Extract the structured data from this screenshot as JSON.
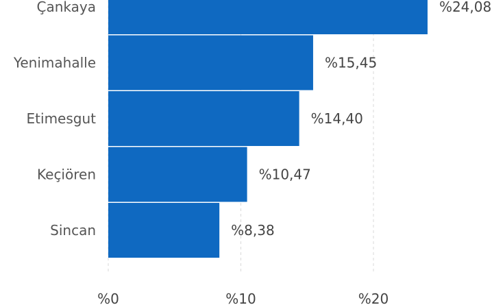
{
  "chart_data": {
    "type": "bar",
    "orientation": "horizontal",
    "categories": [
      "Çankaya",
      "Yenimahalle",
      "Etimesgut",
      "Keçiören",
      "Sincan"
    ],
    "values": [
      24.08,
      15.45,
      14.4,
      10.47,
      8.38
    ],
    "value_labels": [
      "%24,08",
      "%15,45",
      "%14,40",
      "%10,47",
      "%8,38"
    ],
    "x_ticks": [
      0,
      10,
      20
    ],
    "x_tick_labels": [
      "%0",
      "%10",
      "%20"
    ],
    "xlim": [
      0,
      25
    ],
    "grid": true,
    "colors": {
      "bar": "#0f69c1",
      "grid": "#d9d9d9",
      "category_text": "#555555",
      "value_text": "#444444"
    }
  }
}
